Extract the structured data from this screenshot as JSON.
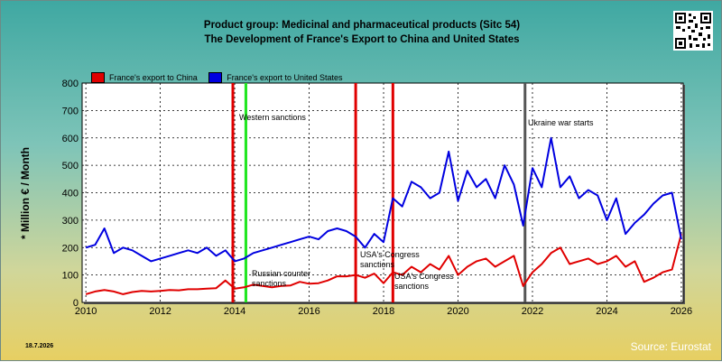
{
  "title_line1": "Product group: Medicinal and pharmaceutical products (Sitc 54)",
  "title_line2": "The Development of France's Export to  China and United States",
  "ylabel": "* Million € / Month",
  "date_stamp": "18.7.2026",
  "source": "Source: Eurostat",
  "qr_icon": "qr-code-icon",
  "colors": {
    "china": "#e00000",
    "usa": "#0000e0",
    "green_marker": "#22e622",
    "war_marker": "#555555",
    "plot_bg": "#ffffff"
  },
  "chart_data": {
    "type": "line",
    "title": "Product group: Medicinal and pharmaceutical products (Sitc 54)",
    "subtitle": "The Development of France's Export to  China and United States",
    "xlabel": "",
    "ylabel": "* Million € / Month",
    "xlim": [
      2009.9,
      2026.05
    ],
    "ylim": [
      0,
      800
    ],
    "y_ticks": [
      0,
      100,
      200,
      300,
      400,
      500,
      600,
      700,
      800
    ],
    "x_ticks": [
      2010,
      2012,
      2014,
      2016,
      2018,
      2020,
      2022,
      2024,
      2026
    ],
    "grid": true,
    "legend_position": "top-left",
    "legend": [
      "France's export to China",
      "France's export to United States"
    ],
    "markers": [
      {
        "x": 2013.95,
        "label": "",
        "color": "#e00000"
      },
      {
        "x": 2014.3,
        "label": "Western sanctions",
        "color": "#22e622"
      },
      {
        "x": 2014.3,
        "label": "Russian counter sanctions",
        "color": "#22e622"
      },
      {
        "x": 2017.25,
        "label": "USA's Congress sanctions",
        "color": "#e00000"
      },
      {
        "x": 2018.25,
        "label": "USA's Congress sanctions",
        "color": "#e00000"
      },
      {
        "x": 2021.8,
        "label": "Ukraine war starts",
        "color": "#555555"
      }
    ],
    "series": [
      {
        "name": "France's export to China",
        "x": [
          2010,
          2010.25,
          2010.5,
          2010.75,
          2011,
          2011.25,
          2011.5,
          2011.75,
          2012,
          2012.25,
          2012.5,
          2012.75,
          2013,
          2013.25,
          2013.5,
          2013.75,
          2014,
          2014.25,
          2014.5,
          2014.75,
          2015,
          2015.25,
          2015.5,
          2015.75,
          2016,
          2016.25,
          2016.5,
          2016.75,
          2017,
          2017.25,
          2017.5,
          2017.75,
          2018,
          2018.25,
          2018.5,
          2018.75,
          2019,
          2019.25,
          2019.5,
          2019.75,
          2020,
          2020.25,
          2020.5,
          2020.75,
          2021,
          2021.25,
          2021.5,
          2021.75,
          2022,
          2022.25,
          2022.5,
          2022.75,
          2023,
          2023.25,
          2023.5,
          2023.75,
          2024,
          2024.25,
          2024.5,
          2024.75,
          2025,
          2025.25,
          2025.5,
          2025.75,
          2026
        ],
        "values": [
          30,
          40,
          45,
          40,
          30,
          38,
          42,
          40,
          42,
          45,
          44,
          48,
          48,
          50,
          52,
          80,
          50,
          55,
          65,
          60,
          55,
          60,
          62,
          75,
          68,
          70,
          80,
          95,
          95,
          100,
          90,
          105,
          70,
          110,
          100,
          130,
          110,
          140,
          120,
          170,
          100,
          130,
          150,
          160,
          130,
          150,
          170,
          60,
          110,
          140,
          180,
          200,
          140,
          150,
          160,
          140,
          150,
          170,
          130,
          150,
          75,
          90,
          110,
          120,
          250
        ]
      },
      {
        "name": "France's export to United States",
        "x": [
          2010,
          2010.25,
          2010.5,
          2010.75,
          2011,
          2011.25,
          2011.5,
          2011.75,
          2012,
          2012.25,
          2012.5,
          2012.75,
          2013,
          2013.25,
          2013.5,
          2013.75,
          2014,
          2014.25,
          2014.5,
          2014.75,
          2015,
          2015.25,
          2015.5,
          2015.75,
          2016,
          2016.25,
          2016.5,
          2016.75,
          2017,
          2017.25,
          2017.5,
          2017.75,
          2018,
          2018.25,
          2018.5,
          2018.75,
          2019,
          2019.25,
          2019.5,
          2019.75,
          2020,
          2020.25,
          2020.5,
          2020.75,
          2021,
          2021.25,
          2021.5,
          2021.75,
          2022,
          2022.25,
          2022.5,
          2022.75,
          2023,
          2023.25,
          2023.5,
          2023.75,
          2024,
          2024.25,
          2024.5,
          2024.75,
          2025,
          2025.25,
          2025.5,
          2025.75,
          2026
        ],
        "values": [
          200,
          210,
          270,
          180,
          200,
          190,
          170,
          150,
          160,
          170,
          180,
          190,
          180,
          200,
          170,
          190,
          150,
          160,
          180,
          190,
          200,
          210,
          220,
          230,
          240,
          230,
          260,
          270,
          260,
          240,
          200,
          250,
          220,
          380,
          350,
          440,
          420,
          380,
          400,
          550,
          370,
          480,
          420,
          450,
          380,
          500,
          430,
          280,
          490,
          420,
          600,
          420,
          460,
          380,
          410,
          390,
          300,
          380,
          250,
          290,
          320,
          360,
          390,
          400,
          230
        ]
      }
    ]
  }
}
